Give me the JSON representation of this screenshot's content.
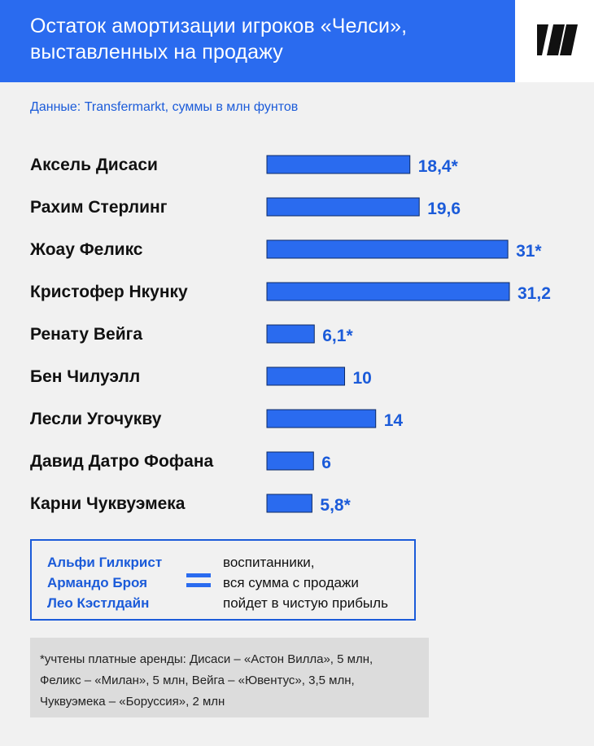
{
  "header": {
    "title": "Остаток амортизации игроков «Челси», выставленных на продажу",
    "logo": "publisher-logo-icon"
  },
  "source": "Данные: Transfermarkt, суммы в млн фунтов",
  "colors": {
    "accent": "#2a6bef",
    "text_blue": "#1b5bd9",
    "background": "#f1f1f1",
    "footnote_bg": "#dcdcdc"
  },
  "chart_data": {
    "type": "bar",
    "orientation": "horizontal",
    "title": "Остаток амортизации игроков «Челси», выставленных на продажу",
    "subtitle": "Данные: Transfermarkt, суммы в млн фунтов",
    "categories": [
      "Аксель Дисаси",
      "Рахим Стерлинг",
      "Жоау Феликс",
      "Кристофер Нкунку",
      "Ренату Вейга",
      "Бен Чилуэлл",
      "Лесли Угочукву",
      "Давид Датро Фофана",
      "Карни Чуквуэмека"
    ],
    "values": [
      18.4,
      19.6,
      31,
      31.2,
      6.1,
      10,
      14,
      6,
      5.8
    ],
    "labels": [
      "18,4*",
      "19,6",
      "31*",
      "31,2",
      "6,1*",
      "10",
      "14",
      "6",
      "5,8*"
    ],
    "xlim": [
      0,
      31.2
    ],
    "grid": false,
    "legend": "none"
  },
  "academy": {
    "names": [
      "Альфи Гилкрист",
      "Армандо Броя",
      "Лео Кэстлдайн"
    ],
    "description": [
      "воспитанники,",
      "вся сумма с продажи",
      "пойдет в чистую прибыль"
    ]
  },
  "footnote": {
    "lines": [
      "*учтены платные аренды: Дисаси – «Астон Вилла», 5 млн,",
      "Феликс – «Милан», 5 млн, Вейга – «Ювентус», 3,5 млн,",
      "Чуквуэмека – «Боруссия», 2 млн"
    ]
  }
}
